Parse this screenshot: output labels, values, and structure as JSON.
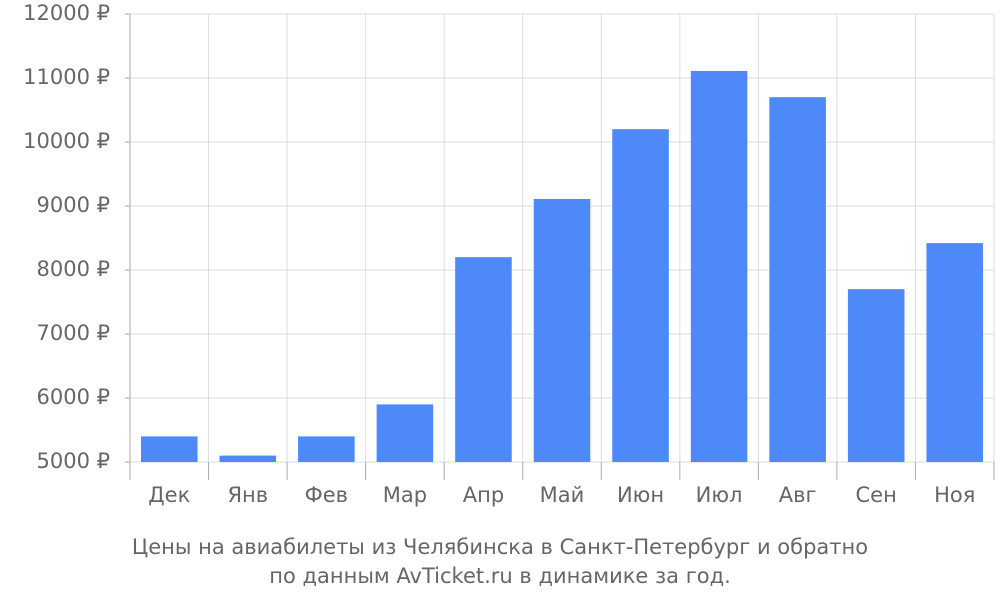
{
  "chart_data": {
    "type": "bar",
    "caption_lines": [
      "Цены на авиабилеты из Челябинска в Санкт-Петербург и обратно",
      "по данным AvTicket.ru в динамике за год."
    ],
    "categories": [
      "Дек",
      "Янв",
      "Фев",
      "Мар",
      "Апр",
      "Май",
      "Июн",
      "Июл",
      "Авг",
      "Сен",
      "Ноя"
    ],
    "values": [
      5400,
      5100,
      5400,
      5900,
      8200,
      9110,
      10200,
      11110,
      10700,
      7700,
      8420
    ],
    "color": "#4d89f9",
    "ylim": [
      5000,
      12000
    ],
    "yticks": [
      {
        "value": 5000,
        "label": "5000 ₽"
      },
      {
        "value": 6000,
        "label": "6000 ₽"
      },
      {
        "value": 7000,
        "label": "7000 ₽"
      },
      {
        "value": 8000,
        "label": "8000 ₽"
      },
      {
        "value": 9000,
        "label": "9000 ₽"
      },
      {
        "value": 10000,
        "label": "10000 ₽"
      },
      {
        "value": 11000,
        "label": "11000 ₽"
      },
      {
        "value": 12000,
        "label": "12000 ₽"
      }
    ],
    "grid": true
  }
}
